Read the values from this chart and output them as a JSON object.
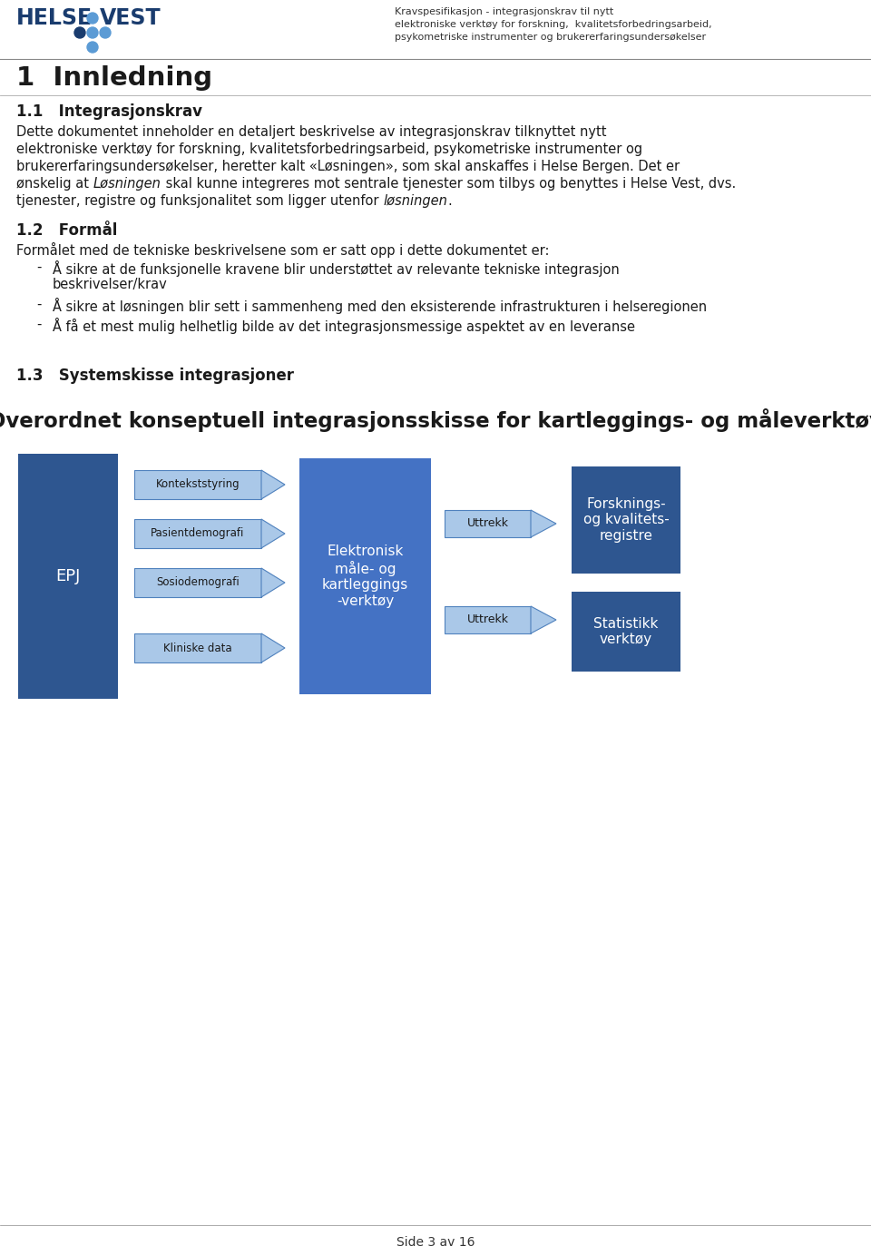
{
  "bg_color": "#ffffff",
  "logo_color_dark": "#1a3c6e",
  "logo_color_light": "#5b9bd5",
  "header_right_line1": "Kravspesifikasjon - integrasjonskrav til nytt",
  "header_right_line2": "elektroniske verktøy for forskning,  kvalitetsforbedringsarbeid,",
  "header_right_line3": "psykometriske instrumenter og brukererfaringsundersøkelser",
  "chapter_title": "1  Innledning",
  "section1_title": "1.1   Integrasjonskrav",
  "section1_lines": [
    "Dette dokumentet inneholder en detaljert beskrivelse av integrasjonskrav tilknyttet nytt",
    "elektroniske verktøy for forskning, kvalitetsforbedringsarbeid, psykometriske instrumenter og",
    "brukererfaringsundersøkelser, heretter kalt «Løsningen», som skal anskaffes i Helse Bergen. Det er",
    "ønskelig at |Løsningen| skal kunne integreres mot sentrale tjenester som tilbys og benyttes i Helse Vest, dvs.",
    "tjenester, registre og funksjonalitet som ligger utenfor |løsningen|."
  ],
  "section2_title": "1.2   Formål",
  "section2_intro": "Formålet med de tekniske beskrivelsene som er satt opp i dette dokumentet er:",
  "section2_bullets": [
    [
      "Å sikre at de funksjonelle kravene blir understøttet av relevante tekniske integrasjon",
      "beskrivelser/krav"
    ],
    [
      "Å sikre at løsningen blir sett i sammenheng med den eksisterende infrastrukturen i helseregionen"
    ],
    [
      "Å få et mest mulig helhetlig bilde av det integrasjonsmessige aspektet av en leveranse"
    ]
  ],
  "section3_title": "1.3   Systemskisse integrasjoner",
  "diagram_title": "Overordnet konseptuell integrasjonsskisse for kartleggings- og måleverktøy",
  "footer_text": "Side 3 av 16",
  "col_dark": "#2e5690",
  "col_mid": "#4472c4",
  "col_light": "#7aaddb",
  "col_lighter": "#aac8e8",
  "col_arrow_border": "#4f81bd"
}
